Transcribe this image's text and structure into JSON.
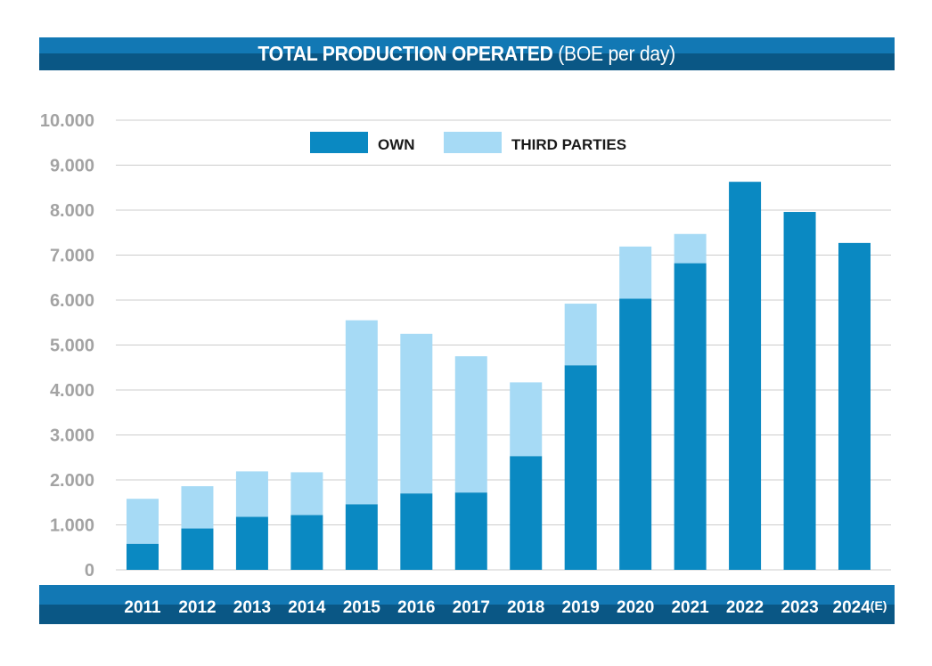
{
  "title": {
    "main": "TOTAL PRODUCTION OPERATED",
    "sub": "(BOE per day)"
  },
  "colors": {
    "own": "#0a89c2",
    "third": "#a6daf5",
    "bar_dark": "#0a5785",
    "bar_light": "#1278b4",
    "grid": "#cccccc",
    "tick": "#a3a3a3"
  },
  "legend": {
    "own": "OWN",
    "third": "THIRD PARTIES"
  },
  "chart_data": {
    "type": "bar",
    "stacked": true,
    "title": "TOTAL PRODUCTION OPERATED (BOE per day)",
    "xlabel": "",
    "ylabel": "",
    "ylim": [
      0,
      10000
    ],
    "yticks": [
      0,
      1000,
      2000,
      3000,
      4000,
      5000,
      6000,
      7000,
      8000,
      9000,
      10000
    ],
    "ytick_labels": [
      "0",
      "1.000",
      "2.000",
      "3.000",
      "4.000",
      "5.000",
      "6.000",
      "7.000",
      "8.000",
      "9.000",
      "10.000"
    ],
    "categories": [
      "2011",
      "2012",
      "2013",
      "2014",
      "2015",
      "2016",
      "2017",
      "2018",
      "2019",
      "2020",
      "2021",
      "2022",
      "2023",
      "2024(E)"
    ],
    "series": [
      {
        "name": "OWN",
        "values": [
          580,
          920,
          1180,
          1220,
          1460,
          1700,
          1720,
          2530,
          4550,
          6030,
          6820,
          8630,
          7960,
          7270
        ]
      },
      {
        "name": "THIRD PARTIES",
        "values": [
          1000,
          940,
          1010,
          950,
          4090,
          3550,
          3030,
          1640,
          1370,
          1160,
          650,
          0,
          0,
          0
        ]
      }
    ],
    "grid": true,
    "legend_position": "top"
  }
}
